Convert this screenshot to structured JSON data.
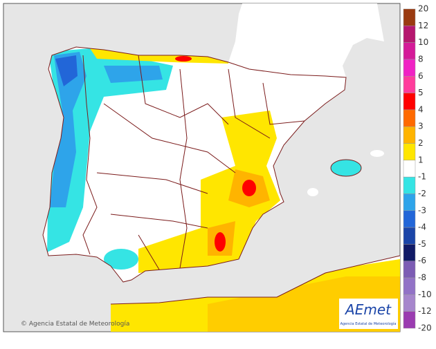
{
  "copyright": "© Agencia Estatal de Meteorología",
  "logo": {
    "name": "AEmet",
    "subtitle": "Agencia Estatal de Meteorología"
  },
  "legend": {
    "ticks": [
      20,
      12,
      10,
      8,
      6,
      5,
      4,
      3,
      2,
      1,
      -1,
      -2,
      -3,
      -4,
      -5,
      -6,
      -8,
      -10,
      -12,
      -20
    ],
    "colors": [
      "#9a3a10",
      "#b5166e",
      "#d41a98",
      "#f022c4",
      "#ff3c9c",
      "#ff0000",
      "#ff6a00",
      "#ffb400",
      "#ffe600",
      "#ffffff",
      "#35e4e4",
      "#2ea4ea",
      "#2266d8",
      "#1b45a8",
      "#111a66",
      "#7c5cb4",
      "#9272c6",
      "#a686cc",
      "#9a3cb0"
    ]
  }
}
